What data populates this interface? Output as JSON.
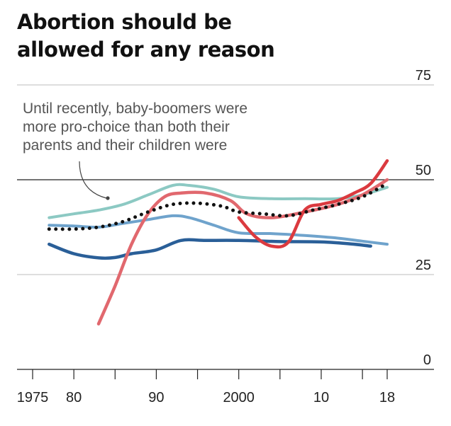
{
  "chart_data": {
    "type": "line",
    "title_lines": [
      "Abortion should be",
      "allowed for any reason"
    ],
    "xlim": [
      1973,
      2020
    ],
    "ylim": [
      0,
      75
    ],
    "y_ticks": [
      0,
      25,
      50,
      75
    ],
    "x_tick_labels": [
      {
        "x": 1975,
        "label": "1975"
      },
      {
        "x": 1980,
        "label": "80"
      },
      {
        "x": 1990,
        "label": "90"
      },
      {
        "x": 2000,
        "label": "2000"
      },
      {
        "x": 2010,
        "label": "10"
      },
      {
        "x": 2018,
        "label": "18"
      }
    ],
    "x_minor_ticks": [
      1975,
      1980,
      1985,
      1990,
      1995,
      2000,
      2005,
      2010,
      2015,
      2018
    ],
    "annotation": {
      "lines": [
        "Until recently, baby-boomers were",
        "more pro-choice than both their",
        "parents and their children were"
      ]
    },
    "series": [
      {
        "key": "teal",
        "color": "#8cc9c3",
        "width": 4,
        "x": [
          1977,
          1980,
          1983,
          1986,
          1989,
          1992,
          1994,
          1997,
          2000,
          2004,
          2008,
          2012,
          2015,
          2018
        ],
        "y": [
          40,
          41,
          42,
          43.5,
          46,
          48.5,
          48.5,
          47.5,
          45.5,
          45,
          45,
          45,
          46,
          48
        ]
      },
      {
        "key": "light-blue",
        "color": "#6fa3cc",
        "width": 4,
        "x": [
          1977,
          1980,
          1983,
          1986,
          1989,
          1992,
          1994,
          1997,
          2000,
          2004,
          2008,
          2012,
          2015,
          2018
        ],
        "y": [
          38,
          37.8,
          37.5,
          38.5,
          39.5,
          40.5,
          40,
          38,
          36,
          35.8,
          35.3,
          34.6,
          33.8,
          33
        ]
      },
      {
        "key": "dark-blue",
        "color": "#2a5f98",
        "width": 4.5,
        "x": [
          1977,
          1980,
          1983,
          1985,
          1987,
          1990,
          1993,
          1996,
          2000,
          2005,
          2010,
          2014,
          2016
        ],
        "y": [
          33,
          30.5,
          29.4,
          29.5,
          30.5,
          31.5,
          34,
          34,
          34,
          33.7,
          33.6,
          33,
          32.5
        ]
      },
      {
        "key": "pink",
        "color": "#e1686e",
        "width": 4.5,
        "x": [
          1983,
          1985,
          1987,
          1989,
          1991,
          1993,
          1996,
          1999,
          2001,
          2004,
          2008,
          2012,
          2015,
          2018
        ],
        "y": [
          12,
          22,
          33,
          41,
          45.5,
          46.5,
          46.5,
          44.5,
          41,
          40,
          41.5,
          43.5,
          46,
          50
        ]
      },
      {
        "key": "red",
        "color": "#db3a3f",
        "width": 4.5,
        "x": [
          2000,
          2002,
          2004,
          2006,
          2008,
          2010,
          2012,
          2014,
          2016,
          2018
        ],
        "y": [
          40,
          35,
          32.5,
          33.5,
          42,
          43.5,
          44.5,
          46.5,
          49,
          55
        ]
      },
      {
        "key": "dotted-average",
        "color": "#111111",
        "width": 5,
        "dotted": true,
        "x": [
          1977,
          1980,
          1983,
          1986,
          1989,
          1992,
          1995,
          1998,
          2000,
          2003,
          2006,
          2009,
          2012,
          2015,
          2018
        ],
        "y": [
          37,
          37,
          37.5,
          39,
          41.5,
          43.5,
          43.8,
          43,
          41.5,
          41,
          40.5,
          42,
          43.5,
          45.5,
          49
        ]
      }
    ]
  }
}
